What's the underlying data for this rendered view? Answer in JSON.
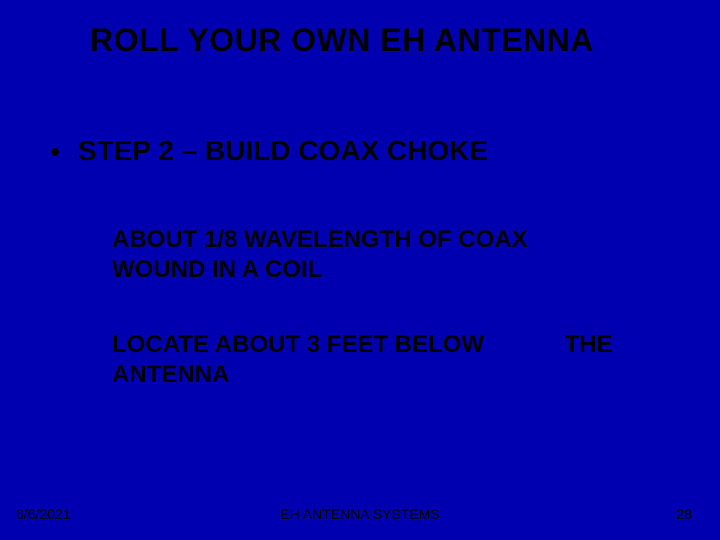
{
  "colors": {
    "background": "#0000b0",
    "text": "#000000"
  },
  "typography": {
    "title_fontsize": 32,
    "bullet_fontsize": 28,
    "body_fontsize": 24,
    "footer_fontsize": 14,
    "font_family": "Arial",
    "weight": "bold"
  },
  "title": "ROLL YOUR OWN EH ANTENNA",
  "bullet": {
    "marker": "•",
    "text": "STEP 2 – BUILD COAX CHOKE"
  },
  "para1": "ABOUT 1/8 WAVELENGTH OF COAX WOUND IN A COIL",
  "para2": {
    "left": "LOCATE ABOUT 3 FEET BELOW ANTENNA",
    "right": "THE"
  },
  "footer": {
    "date": "6/6/2021",
    "center": "EH ANTENNA SYSTEMS",
    "page": "28"
  }
}
